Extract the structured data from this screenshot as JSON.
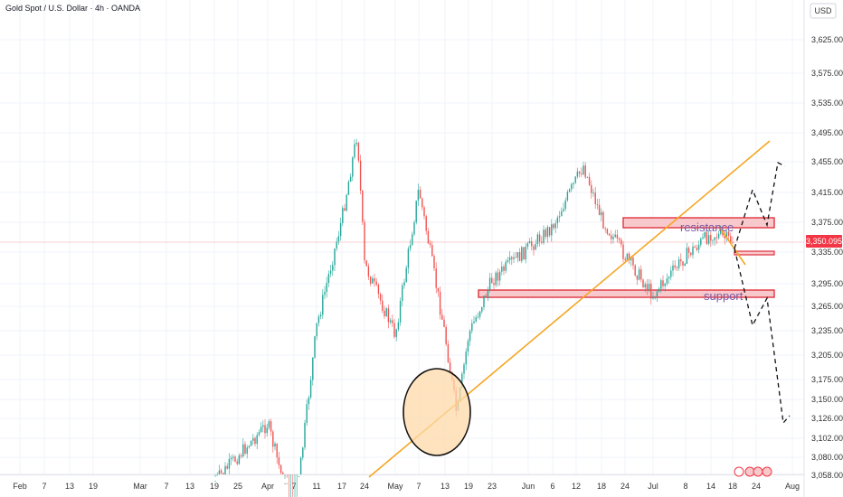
{
  "header": {
    "title": "Gold Spot / U.S. Dollar · 4h · OANDA",
    "currency": "USD"
  },
  "current_price": "3,350.095",
  "chart_data": {
    "type": "candlestick",
    "title": "Gold Spot / U.S. Dollar · 4h · OANDA",
    "xlabel": "",
    "ylabel": "",
    "y_ticks": [
      "3,625.000",
      "3,575.000",
      "3,535.000",
      "3,495.000",
      "3,455.000",
      "3,415.000",
      "3,375.000",
      "3,335.000",
      "3,295.000",
      "3,265.000",
      "3,235.000",
      "3,205.000",
      "3,175.000",
      "3,150.000",
      "3,126.000",
      "3,102.000",
      "3,080.000",
      "3,058.000"
    ],
    "x_ticks": [
      "Feb",
      "7",
      "13",
      "19",
      "Mar",
      "7",
      "13",
      "19",
      "25",
      "Apr",
      "7",
      "11",
      "17",
      "24",
      "May",
      "7",
      "13",
      "19",
      "23",
      "Jun",
      "6",
      "12",
      "18",
      "24",
      "Jul",
      "8",
      "14",
      "18",
      "24",
      "Aug"
    ],
    "approx_closes": [
      {
        "date": "Mar 19",
        "value": 3050
      },
      {
        "date": "Apr 1",
        "value": 3120
      },
      {
        "date": "Apr 7",
        "value": 3000
      },
      {
        "date": "Apr 11",
        "value": 3240
      },
      {
        "date": "Apr 17",
        "value": 3380
      },
      {
        "date": "Apr 22",
        "value": 3495
      },
      {
        "date": "Apr 24",
        "value": 3320
      },
      {
        "date": "May 1",
        "value": 3230
      },
      {
        "date": "May 7",
        "value": 3420
      },
      {
        "date": "May 13",
        "value": 3230
      },
      {
        "date": "May 15",
        "value": 3130
      },
      {
        "date": "May 19",
        "value": 3230
      },
      {
        "date": "May 23",
        "value": 3300
      },
      {
        "date": "Jun 1",
        "value": 3340
      },
      {
        "date": "Jun 6",
        "value": 3370
      },
      {
        "date": "Jun 13",
        "value": 3450
      },
      {
        "date": "Jun 18",
        "value": 3380
      },
      {
        "date": "Jun 24",
        "value": 3330
      },
      {
        "date": "Jul 1",
        "value": 3280
      },
      {
        "date": "Jul 8",
        "value": 3330
      },
      {
        "date": "Jul 14",
        "value": 3360
      },
      {
        "date": "Jul 18",
        "value": 3350
      }
    ],
    "annotations": {
      "resistance_label": "resistance",
      "support_label": "support",
      "resistance_zone": [
        3360,
        3375
      ],
      "minor_zone": [
        3331,
        3338
      ],
      "support_zone": [
        3283,
        3291
      ],
      "trendline": [
        {
          "date": "Apr 24",
          "value": 3045
        },
        {
          "date": "Jul 29",
          "value": 3480
        }
      ],
      "projected_path": [
        3335,
        3395,
        3250,
        3290,
        3128
      ],
      "alt_path": [
        3375,
        3425,
        3380,
        3455
      ]
    },
    "grid": true,
    "legend": "none"
  }
}
